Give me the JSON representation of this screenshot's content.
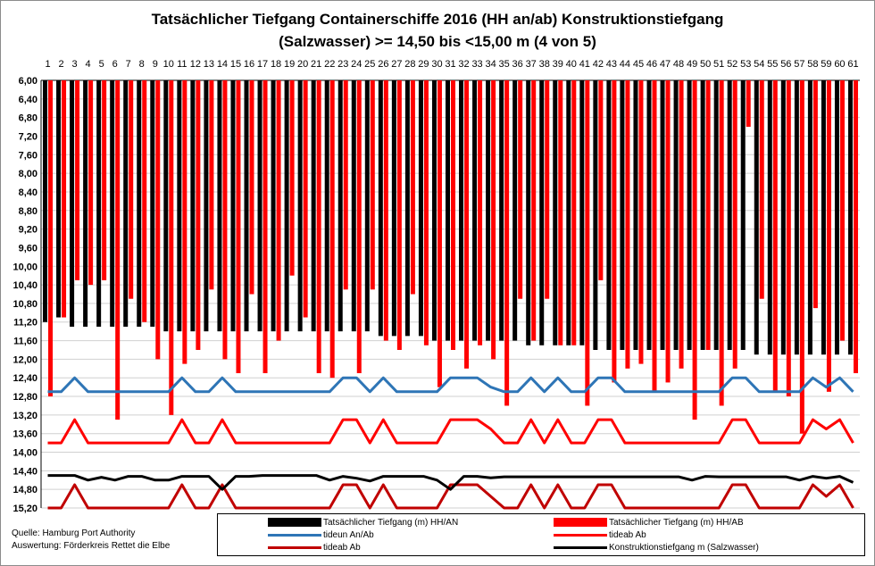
{
  "chart_data": {
    "type": "bar",
    "title_line1": "Tatsächlicher  Tiefgang  Containerschiffe  2016  (HH  an/ab)  Konstruktionstiefgang",
    "title_line2": "(Salzwasser) >= 14,50 bis <15,00 m (4 von 5)",
    "y_axis": {
      "reversed": true,
      "ylim": [
        6.0,
        15.2
      ],
      "tick_step": 0.4,
      "tick_labels": [
        "6,00",
        "6,40",
        "6,80",
        "7,20",
        "7,60",
        "8,00",
        "8,40",
        "8,80",
        "9,20",
        "9,60",
        "10,00",
        "10,40",
        "10,80",
        "11,20",
        "11,60",
        "12,00",
        "12,40",
        "12,80",
        "13,20",
        "13,60",
        "14,00",
        "14,40",
        "14,80",
        "15,20"
      ]
    },
    "grid": true,
    "categories": [
      "1",
      "2",
      "3",
      "4",
      "5",
      "6",
      "7",
      "8",
      "9",
      "10",
      "11",
      "12",
      "13",
      "14",
      "15",
      "16",
      "17",
      "18",
      "19",
      "20",
      "21",
      "22",
      "23",
      "24",
      "25",
      "26",
      "27",
      "28",
      "29",
      "30",
      "31",
      "32",
      "33",
      "34",
      "35",
      "36",
      "37",
      "38",
      "39",
      "40",
      "41",
      "42",
      "43",
      "44",
      "45",
      "46",
      "47",
      "48",
      "49",
      "50",
      "51",
      "52",
      "53",
      "54",
      "55",
      "56",
      "57",
      "58",
      "59",
      "60",
      "61"
    ],
    "series": [
      {
        "name": "Tatsächlicher Tiefgang (m) HH/AN",
        "kind": "bar",
        "color": "#000000",
        "values": [
          11.2,
          11.1,
          11.3,
          11.3,
          11.3,
          11.3,
          11.3,
          11.3,
          11.3,
          11.4,
          11.4,
          11.4,
          11.4,
          11.4,
          11.4,
          11.4,
          11.4,
          11.4,
          11.4,
          11.4,
          11.4,
          11.4,
          11.4,
          11.4,
          11.4,
          11.5,
          11.5,
          11.5,
          11.5,
          11.6,
          11.6,
          11.6,
          11.6,
          11.6,
          11.6,
          11.6,
          11.7,
          11.7,
          11.7,
          11.7,
          11.7,
          11.8,
          11.8,
          11.8,
          11.8,
          11.8,
          11.8,
          11.8,
          11.8,
          11.8,
          11.8,
          11.8,
          11.8,
          11.9,
          11.9,
          11.9,
          11.9,
          11.9,
          11.9,
          11.9,
          11.9
        ]
      },
      {
        "name": "Tatsächlicher Tiefgang (m) HH/AB",
        "kind": "bar",
        "color": "#ff0000",
        "values": [
          12.8,
          11.1,
          10.3,
          10.4,
          10.3,
          13.3,
          10.7,
          11.2,
          12.0,
          13.2,
          12.1,
          11.8,
          10.5,
          12.0,
          12.3,
          10.6,
          12.3,
          11.6,
          10.2,
          11.1,
          12.3,
          12.4,
          10.5,
          12.3,
          10.5,
          11.6,
          11.8,
          10.6,
          11.7,
          12.6,
          11.8,
          12.2,
          11.7,
          12.0,
          13.0,
          10.7,
          11.6,
          10.7,
          11.7,
          11.7,
          13.0,
          10.3,
          12.5,
          12.2,
          12.1,
          12.7,
          12.5,
          12.2,
          13.3,
          11.8,
          13.0,
          12.2,
          7.0,
          10.7,
          12.7,
          12.8,
          13.6,
          10.9,
          12.7,
          11.6,
          12.3
        ]
      },
      {
        "name": "tideun An/Ab",
        "kind": "line",
        "color": "#2e75b6",
        "values": [
          12.7,
          12.7,
          12.4,
          12.7,
          12.7,
          12.7,
          12.7,
          12.7,
          12.7,
          12.7,
          12.4,
          12.7,
          12.7,
          12.4,
          12.7,
          12.7,
          12.7,
          12.7,
          12.7,
          12.7,
          12.7,
          12.7,
          12.4,
          12.4,
          12.7,
          12.4,
          12.7,
          12.7,
          12.7,
          12.7,
          12.4,
          12.4,
          12.4,
          12.6,
          12.7,
          12.7,
          12.4,
          12.7,
          12.4,
          12.7,
          12.7,
          12.4,
          12.4,
          12.7,
          12.7,
          12.7,
          12.7,
          12.7,
          12.7,
          12.7,
          12.7,
          12.4,
          12.4,
          12.7,
          12.7,
          12.7,
          12.7,
          12.4,
          12.6,
          12.4,
          12.7
        ]
      },
      {
        "name": "tideab Ab",
        "kind": "line",
        "color": "#ff0000",
        "values": [
          13.8,
          13.8,
          13.3,
          13.8,
          13.8,
          13.8,
          13.8,
          13.8,
          13.8,
          13.8,
          13.3,
          13.8,
          13.8,
          13.3,
          13.8,
          13.8,
          13.8,
          13.8,
          13.8,
          13.8,
          13.8,
          13.8,
          13.3,
          13.3,
          13.8,
          13.3,
          13.8,
          13.8,
          13.8,
          13.8,
          13.3,
          13.3,
          13.3,
          13.5,
          13.8,
          13.8,
          13.3,
          13.8,
          13.3,
          13.8,
          13.8,
          13.3,
          13.3,
          13.8,
          13.8,
          13.8,
          13.8,
          13.8,
          13.8,
          13.8,
          13.8,
          13.3,
          13.3,
          13.8,
          13.8,
          13.8,
          13.8,
          13.3,
          13.5,
          13.3,
          13.8
        ]
      },
      {
        "name": "tideab Ab",
        "kind": "line",
        "color": "#c00000",
        "values": [
          15.2,
          15.2,
          14.7,
          15.2,
          15.2,
          15.2,
          15.2,
          15.2,
          15.2,
          15.2,
          14.7,
          15.2,
          15.2,
          14.7,
          15.2,
          15.2,
          15.2,
          15.2,
          15.2,
          15.2,
          15.2,
          15.2,
          14.7,
          14.7,
          15.2,
          14.7,
          15.2,
          15.2,
          15.2,
          15.2,
          14.7,
          14.7,
          14.7,
          14.95,
          15.2,
          15.2,
          14.7,
          15.2,
          14.7,
          15.2,
          15.2,
          14.7,
          14.7,
          15.2,
          15.2,
          15.2,
          15.2,
          15.2,
          15.2,
          15.2,
          15.2,
          14.7,
          14.7,
          15.2,
          15.2,
          15.2,
          15.2,
          14.7,
          14.95,
          14.7,
          15.2
        ]
      },
      {
        "name": "Konstruktionstiefgang  m  (Salzwasser)",
        "kind": "line",
        "color": "#000000",
        "values": [
          14.5,
          14.5,
          14.5,
          14.6,
          14.54,
          14.6,
          14.52,
          14.52,
          14.6,
          14.6,
          14.52,
          14.52,
          14.52,
          14.8,
          14.52,
          14.52,
          14.5,
          14.5,
          14.5,
          14.5,
          14.5,
          14.6,
          14.52,
          14.56,
          14.62,
          14.52,
          14.52,
          14.52,
          14.52,
          14.6,
          14.8,
          14.52,
          14.52,
          14.55,
          14.53,
          14.53,
          14.53,
          14.53,
          14.53,
          14.53,
          14.53,
          14.53,
          14.53,
          14.53,
          14.53,
          14.53,
          14.53,
          14.53,
          14.6,
          14.52,
          14.53,
          14.53,
          14.53,
          14.53,
          14.53,
          14.53,
          14.6,
          14.52,
          14.56,
          14.52,
          14.65
        ]
      }
    ]
  },
  "legend": {
    "items": [
      {
        "label": "Tatsächlicher Tiefgang (m) HH/AN",
        "color": "#000000",
        "kind": "bar"
      },
      {
        "label": "Tatsächlicher Tiefgang (m) HH/AB",
        "color": "#ff0000",
        "kind": "bar"
      },
      {
        "label": "tideun An/Ab",
        "color": "#2e75b6",
        "kind": "line"
      },
      {
        "label": "tideab Ab",
        "color": "#ff0000",
        "kind": "line"
      },
      {
        "label": "tideab Ab",
        "color": "#c00000",
        "kind": "line"
      },
      {
        "label": "Konstruktionstiefgang  m  (Salzwasser)",
        "color": "#000000",
        "kind": "line"
      }
    ]
  },
  "source": {
    "line1": "Quelle: Hamburg Port Authority",
    "line2": "Auswertung: Förderkreis Rettet die Elbe"
  }
}
